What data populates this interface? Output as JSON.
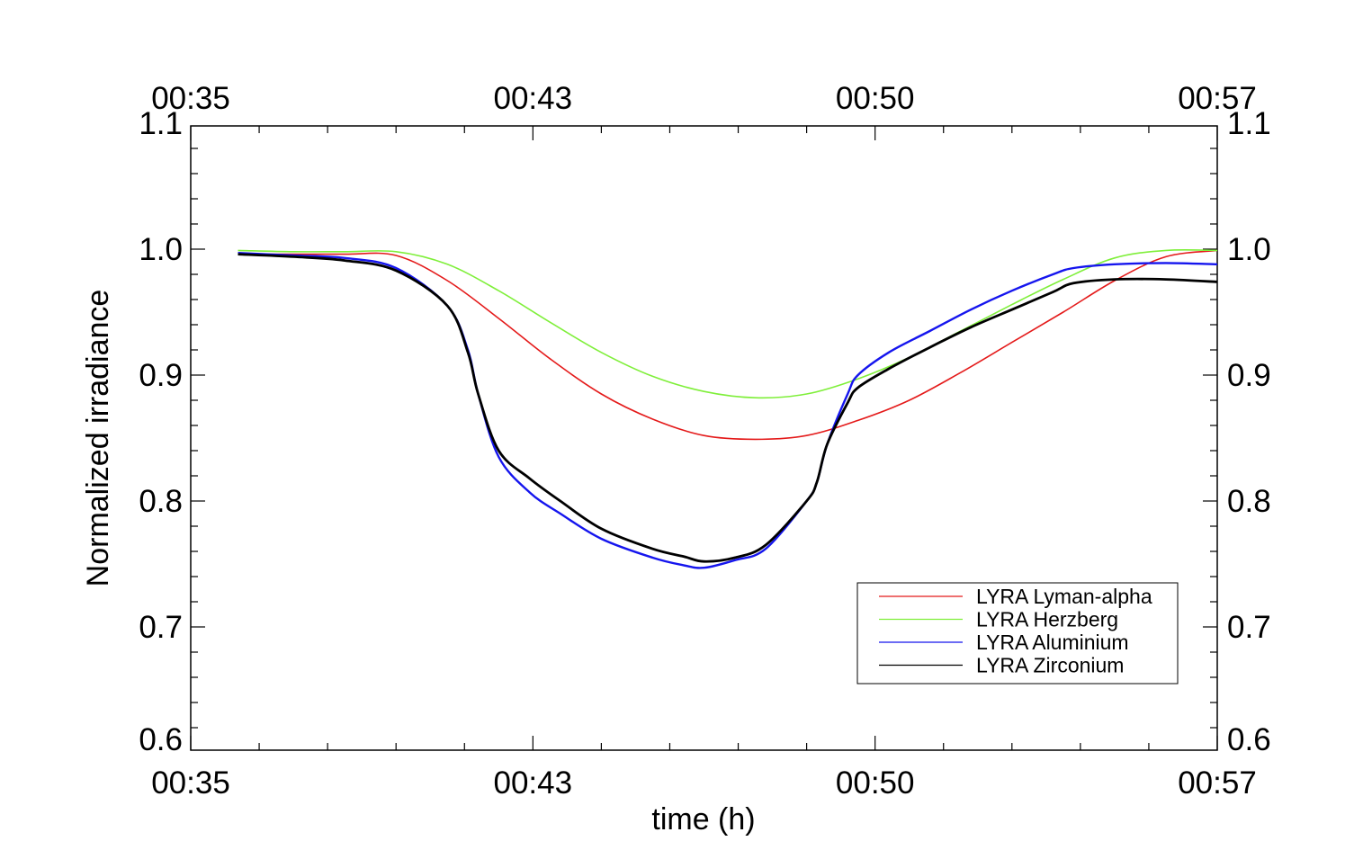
{
  "chart_data": {
    "type": "line",
    "xlabel": "time (h)",
    "ylabel": "Normalized irradiance",
    "title": "",
    "xlim": [
      0,
      1
    ],
    "ylim": [
      0.6,
      1.1
    ],
    "x_tick_positions": [
      0,
      0.3333,
      0.6667,
      1
    ],
    "x_tick_labels": [
      "00:35",
      "00:43",
      "00:50",
      "00:57"
    ],
    "y_ticks": [
      0.6,
      0.7,
      0.8,
      0.9,
      1.0,
      1.1
    ],
    "y_tick_labels": [
      "0.6",
      "0.7",
      "0.8",
      "0.9",
      "1.0",
      "1.1"
    ],
    "grid": false,
    "legend_position": "bottom-right",
    "series": [
      {
        "name": "LYRA Lyman-alpha",
        "color": "#e41a1a",
        "x": [
          0.046,
          0.1,
          0.15,
          0.2,
          0.25,
          0.3,
          0.35,
          0.4,
          0.45,
          0.5,
          0.55,
          0.6,
          0.65,
          0.7,
          0.75,
          0.8,
          0.85,
          0.9,
          0.95,
          1.0
        ],
        "y": [
          0.996,
          0.996,
          0.996,
          0.995,
          0.975,
          0.945,
          0.913,
          0.885,
          0.865,
          0.852,
          0.849,
          0.852,
          0.864,
          0.88,
          0.902,
          0.926,
          0.95,
          0.975,
          0.994,
          0.999
        ]
      },
      {
        "name": "LYRA Herzberg",
        "color": "#7fef3a",
        "x": [
          0.046,
          0.1,
          0.15,
          0.2,
          0.25,
          0.3,
          0.35,
          0.4,
          0.45,
          0.5,
          0.55,
          0.6,
          0.65,
          0.7,
          0.75,
          0.8,
          0.85,
          0.9,
          0.95,
          1.0
        ],
        "y": [
          0.999,
          0.998,
          0.998,
          0.998,
          0.988,
          0.967,
          0.942,
          0.918,
          0.899,
          0.887,
          0.882,
          0.885,
          0.897,
          0.914,
          0.935,
          0.956,
          0.976,
          0.993,
          0.999,
          0.999
        ]
      },
      {
        "name": "LYRA Aluminium",
        "color": "#1515ee",
        "x": [
          0.046,
          0.1,
          0.15,
          0.2,
          0.25,
          0.27,
          0.28,
          0.3,
          0.33,
          0.36,
          0.4,
          0.45,
          0.48,
          0.5,
          0.53,
          0.56,
          0.6,
          0.61,
          0.62,
          0.64,
          0.65,
          0.68,
          0.72,
          0.76,
          0.8,
          0.84,
          0.86,
          0.9,
          0.95,
          1.0
        ],
        "y": [
          0.997,
          0.995,
          0.993,
          0.985,
          0.955,
          0.92,
          0.885,
          0.835,
          0.807,
          0.79,
          0.77,
          0.755,
          0.749,
          0.747,
          0.753,
          0.762,
          0.8,
          0.815,
          0.845,
          0.885,
          0.9,
          0.918,
          0.935,
          0.952,
          0.967,
          0.98,
          0.985,
          0.988,
          0.989,
          0.988
        ]
      },
      {
        "name": "LYRA Zirconium",
        "color": "#000000",
        "x": [
          0.046,
          0.1,
          0.15,
          0.2,
          0.25,
          0.27,
          0.28,
          0.3,
          0.33,
          0.36,
          0.4,
          0.45,
          0.48,
          0.5,
          0.53,
          0.56,
          0.6,
          0.61,
          0.62,
          0.64,
          0.65,
          0.68,
          0.72,
          0.76,
          0.8,
          0.84,
          0.86,
          0.9,
          0.95,
          1.0
        ],
        "y": [
          0.996,
          0.994,
          0.991,
          0.983,
          0.955,
          0.918,
          0.885,
          0.84,
          0.818,
          0.8,
          0.778,
          0.762,
          0.756,
          0.752,
          0.755,
          0.765,
          0.8,
          0.815,
          0.845,
          0.878,
          0.89,
          0.905,
          0.922,
          0.938,
          0.952,
          0.966,
          0.973,
          0.976,
          0.976,
          0.974
        ]
      }
    ]
  }
}
